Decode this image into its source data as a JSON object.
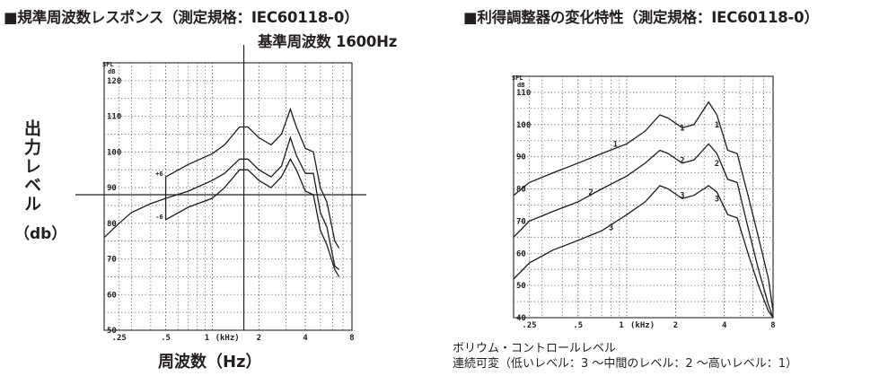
{
  "headings": {
    "left_title": "■規準周波数レスポンス（測定規格：IEC60118-0）",
    "left_subtitle": "基準周波数 1600Hz",
    "right_title": "■利得調整器の変化特性（測定規格：IEC60118-0）"
  },
  "labels": {
    "y_label": "出力レベル",
    "y_unit": "（db）",
    "x_label": "周波数（Hz）",
    "note_line1": "ボリウム・コントロールレベル",
    "note_line2": "連続可変（低いレベル：3 ～中間のレベル：2 ～高いレベル：1）"
  },
  "chart_data": [
    {
      "type": "line",
      "title": "■規準周波数レスポンス（測定規格：IEC60118-0）",
      "subtitle": "基準周波数 1600Hz",
      "xlabel": "周波数（Hz）",
      "ylabel": "出力レベル（db）",
      "x_scale": "log",
      "xlim": [
        0.2,
        8
      ],
      "ylim": [
        50,
        125
      ],
      "x_ticks": [
        {
          "value": 0.25,
          "label": ".25"
        },
        {
          "value": 0.5,
          "label": ".5"
        },
        {
          "value": 1,
          "label": "1"
        },
        {
          "value": 2,
          "label": "2"
        },
        {
          "value": 4,
          "label": "4"
        },
        {
          "value": 8,
          "label": "8"
        }
      ],
      "x_unit_label": "(kHz)",
      "y_ticks": [
        50,
        60,
        70,
        80,
        90,
        100,
        110,
        120
      ],
      "y_unit_label": [
        "SPL",
        "dB"
      ],
      "reference_lines": {
        "x": 1.6,
        "y": 88
      },
      "side_labels": [
        {
          "x": 0.5,
          "y": 94,
          "text": "+6"
        },
        {
          "x": 0.5,
          "y": 82,
          "text": "-6"
        }
      ],
      "grid": true,
      "series": [
        {
          "x": [
            0.2,
            0.25,
            0.3,
            0.4,
            0.5,
            0.7,
            1.0,
            1.2,
            1.5,
            1.7,
            2.0,
            2.4,
            2.8,
            3.2,
            3.5,
            4.0,
            4.5,
            5.0,
            5.5,
            6.2,
            6.6
          ],
          "y": [
            76,
            80,
            83,
            85.5,
            87,
            89,
            92,
            94,
            98,
            98,
            95,
            93,
            96,
            104,
            99,
            94,
            94,
            83,
            79,
            68,
            67
          ]
        },
        {
          "x": [
            0.5,
            0.7,
            1.0,
            1.2,
            1.5,
            1.7,
            2.0,
            2.4,
            2.8,
            3.2,
            3.5,
            4.0,
            4.5,
            5.0,
            5.5,
            6.2,
            6.6
          ],
          "y": [
            93,
            96.5,
            99.5,
            102,
            107,
            107,
            104,
            102,
            105,
            112,
            107,
            101,
            100,
            90,
            86,
            75,
            73
          ]
        },
        {
          "x": [
            0.5,
            0.7,
            1.0,
            1.2,
            1.5,
            1.7,
            2.0,
            2.4,
            2.8,
            3.2,
            3.5,
            4.0,
            4.5,
            5.0,
            5.5,
            6.2,
            6.6
          ],
          "y": [
            81,
            84.5,
            87,
            90,
            95,
            95,
            92,
            90,
            93,
            98,
            95,
            89,
            88,
            78,
            74,
            67,
            65
          ]
        }
      ],
      "bracket": {
        "x": 0.5,
        "y_top": 93,
        "y_bottom": 81
      }
    },
    {
      "type": "line",
      "title": "■利得調整器の変化特性（測定規格：IEC60118-0）",
      "xlabel": "",
      "ylabel": "",
      "x_scale": "log",
      "xlim": [
        0.2,
        8
      ],
      "ylim": [
        40,
        115
      ],
      "x_ticks": [
        {
          "value": 0.25,
          "label": ".25"
        },
        {
          "value": 0.5,
          "label": ".5"
        },
        {
          "value": 1,
          "label": "1"
        },
        {
          "value": 2,
          "label": "2"
        },
        {
          "value": 4,
          "label": "4"
        },
        {
          "value": 8,
          "label": "8"
        }
      ],
      "x_unit_label": "(kHz)",
      "y_ticks": [
        40,
        50,
        60,
        70,
        80,
        90,
        100,
        110
      ],
      "y_unit_label": [
        "SPL",
        "dB"
      ],
      "grid": true,
      "series": [
        {
          "name": "1",
          "x": [
            0.2,
            0.25,
            0.35,
            0.5,
            0.7,
            1.0,
            1.3,
            1.6,
            1.8,
            2.2,
            2.6,
            3.2,
            3.6,
            4.2,
            4.8,
            5.6,
            6.5,
            7.5,
            8
          ],
          "y": [
            78,
            82,
            85,
            88,
            91,
            94,
            98,
            103,
            102,
            99,
            100,
            107,
            103,
            92,
            91,
            78,
            65,
            52,
            42
          ]
        },
        {
          "name": "2",
          "x": [
            0.2,
            0.25,
            0.35,
            0.5,
            0.7,
            1.0,
            1.3,
            1.6,
            1.8,
            2.2,
            2.6,
            3.2,
            3.6,
            4.2,
            4.8,
            5.6,
            6.5,
            7.5,
            8
          ],
          "y": [
            65,
            70,
            73,
            76,
            80,
            84,
            88,
            92,
            91,
            88,
            89,
            94,
            91,
            83,
            82,
            68,
            55,
            44,
            40
          ]
        },
        {
          "name": "3",
          "x": [
            0.2,
            0.25,
            0.35,
            0.5,
            0.7,
            1.0,
            1.3,
            1.6,
            1.8,
            2.2,
            2.6,
            3.2,
            3.6,
            4.2,
            4.8,
            5.6,
            6.5,
            7.5,
            8
          ],
          "y": [
            52,
            57,
            61,
            64,
            67,
            72,
            76,
            81,
            80,
            77,
            78,
            81,
            79,
            72,
            71,
            60,
            50,
            42,
            40
          ]
        }
      ],
      "series_labels": [
        {
          "series": "1",
          "x": 0.85,
          "y": 94
        },
        {
          "series": "1",
          "x": 2.2,
          "y": 99
        },
        {
          "series": "1",
          "x": 3.6,
          "y": 100
        },
        {
          "series": "2",
          "x": 0.6,
          "y": 79
        },
        {
          "series": "2",
          "x": 2.2,
          "y": 89
        },
        {
          "series": "2",
          "x": 3.6,
          "y": 88
        },
        {
          "series": "3",
          "x": 0.8,
          "y": 68
        },
        {
          "series": "3",
          "x": 2.2,
          "y": 78
        },
        {
          "series": "3",
          "x": 3.6,
          "y": 77
        }
      ]
    }
  ]
}
